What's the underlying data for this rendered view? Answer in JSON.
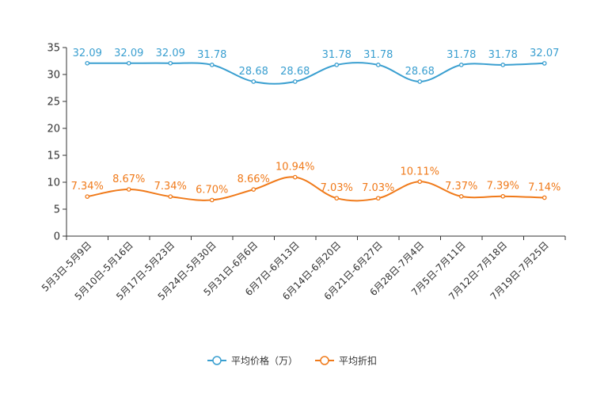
{
  "chart_data": {
    "type": "line",
    "title": "",
    "xlabel": "",
    "ylabel": "",
    "ylim": [
      0,
      35
    ],
    "yticks": [
      0,
      5,
      10,
      15,
      20,
      25,
      30,
      35
    ],
    "grid": false,
    "legend_position": "bottom-center",
    "categories": [
      "5月3日-5月9日",
      "5月10日-5月16日",
      "5月17日-5月23日",
      "5月24日-5月30日",
      "5月31日-6月6日",
      "6月7日-6月13日",
      "6月14日-6月20日",
      "6月21日-6月27日",
      "6月28日-7月4日",
      "7月5日-7月11日",
      "7月12日-7月18日",
      "7月19日-7月25日"
    ],
    "series": [
      {
        "name": "平均价格（万）",
        "color": "#3a9fd0",
        "values": [
          32.09,
          32.09,
          32.09,
          31.78,
          28.68,
          28.68,
          31.78,
          31.78,
          28.68,
          31.78,
          31.78,
          32.07
        ],
        "labels": [
          "32.09",
          "32.09",
          "32.09",
          "31.78",
          "28.68",
          "28.68",
          "31.78",
          "31.78",
          "28.68",
          "31.78",
          "31.78",
          "32.07"
        ]
      },
      {
        "name": "平均折扣",
        "color": "#f07a1a",
        "values": [
          7.34,
          8.67,
          7.34,
          6.7,
          8.66,
          10.94,
          7.03,
          7.03,
          10.11,
          7.37,
          7.39,
          7.14
        ],
        "labels": [
          "7.34%",
          "8.67%",
          "7.34%",
          "6.70%",
          "8.66%",
          "10.94%",
          "7.03%",
          "7.03%",
          "10.11%",
          "7.37%",
          "7.39%",
          "7.14%"
        ]
      }
    ]
  }
}
